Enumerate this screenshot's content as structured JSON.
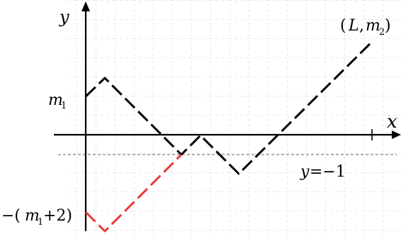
{
  "labels": {
    "y_axis": "y",
    "x_axis": "x",
    "m1": "m",
    "m1_sub": "1",
    "end_open": "(",
    "end_L": "L",
    "end_comma": ",",
    "end_m": "m",
    "end_sub": "2",
    "end_close": ")",
    "y_eq": "y",
    "y_eq_rest": "=−1",
    "neg_open": "−(",
    "neg_m": "m",
    "neg_sub": "1",
    "neg_rest": "+2)"
  },
  "colors": {
    "path": "#000000",
    "reflected_path": "#e83a3a",
    "grid": "#c8c8c8",
    "reference_line": "#999999"
  }
}
